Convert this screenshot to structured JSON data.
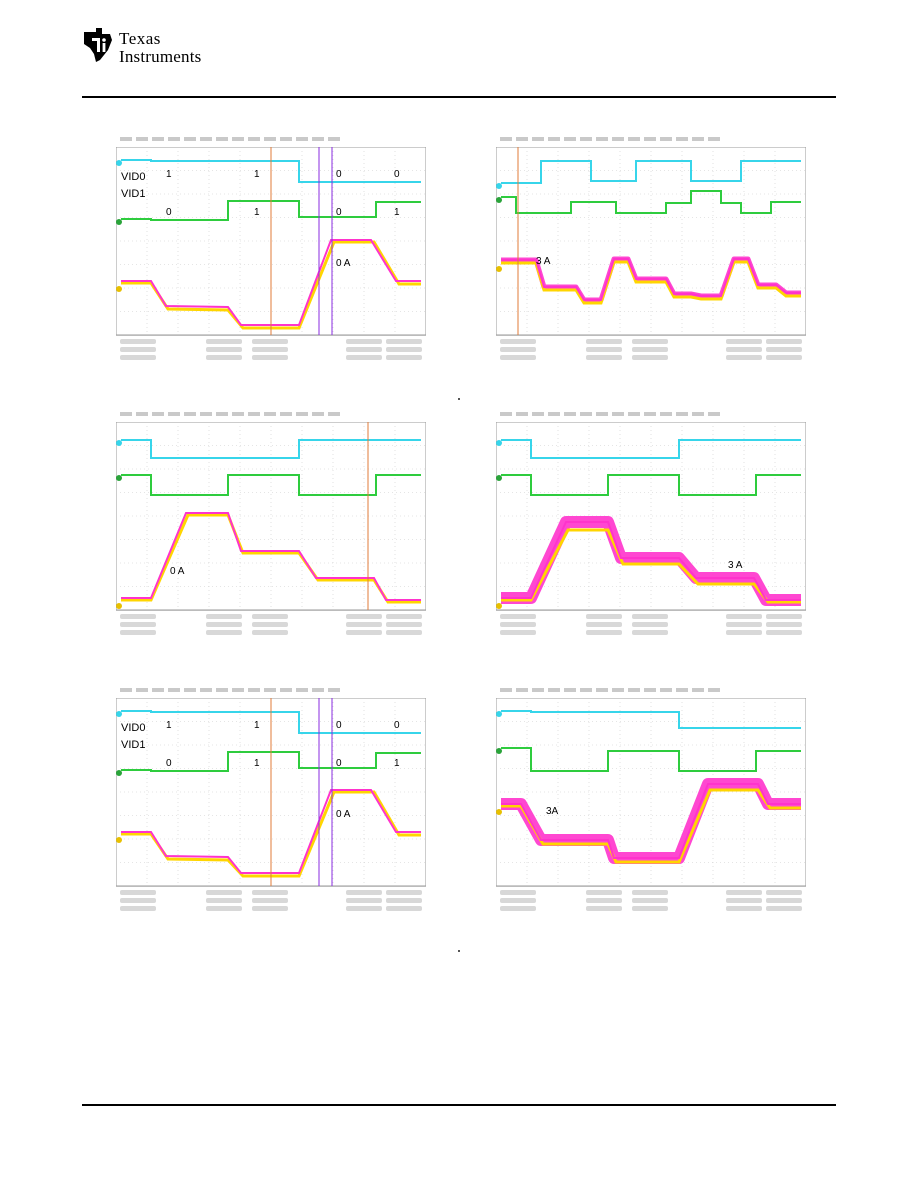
{
  "header": {
    "logo_line1": "Texas",
    "logo_line2": "Instruments",
    "logo_text": "Texas Instruments"
  },
  "colors": {
    "vid0_trace": "#37d5ea",
    "vid1_trace": "#2ecc3e",
    "current_trace": "#ff33cc",
    "output_trace": "#ffd500",
    "grid": "#cccccc",
    "cursor_orange": "#e07b39",
    "cursor_purple": "#8a2be2"
  },
  "figures": [
    {
      "id": "fig-top-left",
      "labels": {
        "vid0": "VID0",
        "vid1": "VID1",
        "vid0_bits": [
          "1",
          "1",
          "0",
          "0"
        ],
        "vid1_bits": [
          "0",
          "1",
          "0",
          "1"
        ],
        "current": "0 A"
      }
    },
    {
      "id": "fig-top-right",
      "labels": {
        "current": "3 A"
      }
    },
    {
      "id": "fig-mid-left",
      "labels": {
        "current": "0 A"
      }
    },
    {
      "id": "fig-mid-right",
      "labels": {
        "current": "3 A"
      }
    },
    {
      "id": "fig-bottom-left",
      "labels": {
        "vid0": "VID0",
        "vid1": "VID1",
        "vid0_bits": [
          "1",
          "1",
          "0",
          "0"
        ],
        "vid1_bits": [
          "0",
          "1",
          "0",
          "1"
        ],
        "current": "0 A"
      }
    },
    {
      "id": "fig-bottom-right",
      "labels": {
        "current": "3A"
      }
    }
  ]
}
